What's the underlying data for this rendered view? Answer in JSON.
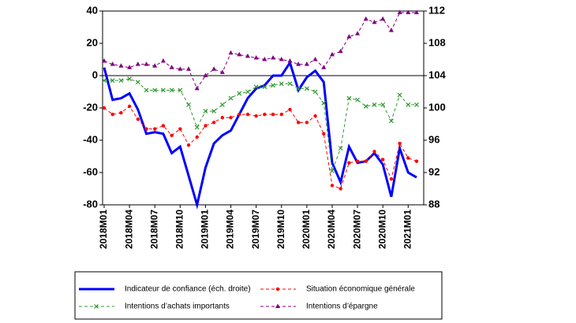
{
  "chart_data": {
    "type": "line",
    "categories": [
      "2018M01",
      null,
      null,
      "2018M04",
      null,
      null,
      "2018M07",
      null,
      null,
      "2018M10",
      null,
      null,
      "2019M01",
      null,
      null,
      "2019M04",
      null,
      null,
      "2019M07",
      null,
      null,
      "2019M10",
      null,
      null,
      "2020M01",
      null,
      null,
      "2020M04",
      null,
      null,
      "2020M07",
      null,
      null,
      "2020M10",
      null,
      null,
      "2021M01",
      null
    ],
    "ylim": [
      -80,
      40
    ],
    "yticks": [
      -80,
      -60,
      -40,
      -20,
      0,
      20,
      40
    ],
    "y2lim": [
      88,
      112
    ],
    "y2ticks": [
      88,
      92,
      96,
      100,
      104,
      108,
      112
    ],
    "zero_line": true,
    "series": [
      {
        "name": "Indicateur de confiance (éch. droite)",
        "color": "#0000ff",
        "axis": "y2",
        "marker": "none",
        "dashed": false,
        "values": [
          105,
          101,
          101.2,
          101.8,
          99.8,
          96.8,
          97,
          96.8,
          94.4,
          95.2,
          91.6,
          88,
          92.6,
          95.6,
          96.6,
          97.2,
          99.2,
          101.2,
          102.4,
          102.8,
          104,
          104,
          105.6,
          102.2,
          103.8,
          104.6,
          103.2,
          93.2,
          90.8,
          95.2,
          93.2,
          93.4,
          94.4,
          93,
          89,
          95,
          92,
          91.4
        ]
      },
      {
        "name": "Situation économique générale",
        "color": "#ff0000",
        "marker": "circle",
        "dashed": true,
        "values": [
          -20,
          -24,
          -23,
          -19,
          -27,
          -33,
          -33,
          -31,
          -37,
          -33,
          -43,
          -38,
          -31,
          -29,
          -26,
          -26,
          -24,
          -24,
          -25,
          -24,
          -24,
          -24,
          -21,
          -29,
          -29,
          -25,
          -36,
          -68,
          -70,
          -54,
          -53,
          -53,
          -47,
          -52,
          -64,
          -42,
          -51,
          -53
        ]
      },
      {
        "name": "Intentions d’achats importants",
        "color": "#339933",
        "marker": "x",
        "dashed": true,
        "values": [
          -3,
          -3,
          -3,
          -2,
          -4,
          -9,
          -9,
          -9,
          -9,
          -9,
          -18,
          -32,
          -22,
          -22,
          -18,
          -14,
          -11,
          -10,
          -7,
          -7,
          -6,
          -5,
          -5,
          -8,
          -8,
          -10,
          -17,
          -59,
          -45,
          -14,
          -15,
          -19,
          -18,
          -18,
          -28,
          -12,
          -18,
          -18
        ]
      },
      {
        "name": "Intentions d’épargne",
        "color": "#800080",
        "marker": "triangle",
        "dashed": true,
        "values": [
          9,
          7,
          6,
          5,
          7,
          7,
          6,
          9,
          5,
          4,
          4,
          -8,
          0,
          4,
          2,
          14,
          13,
          12,
          11,
          10,
          11,
          10,
          9,
          7,
          7,
          10,
          5,
          13,
          15,
          24,
          26,
          35,
          33,
          35,
          28,
          39,
          39,
          39
        ]
      }
    ]
  }
}
